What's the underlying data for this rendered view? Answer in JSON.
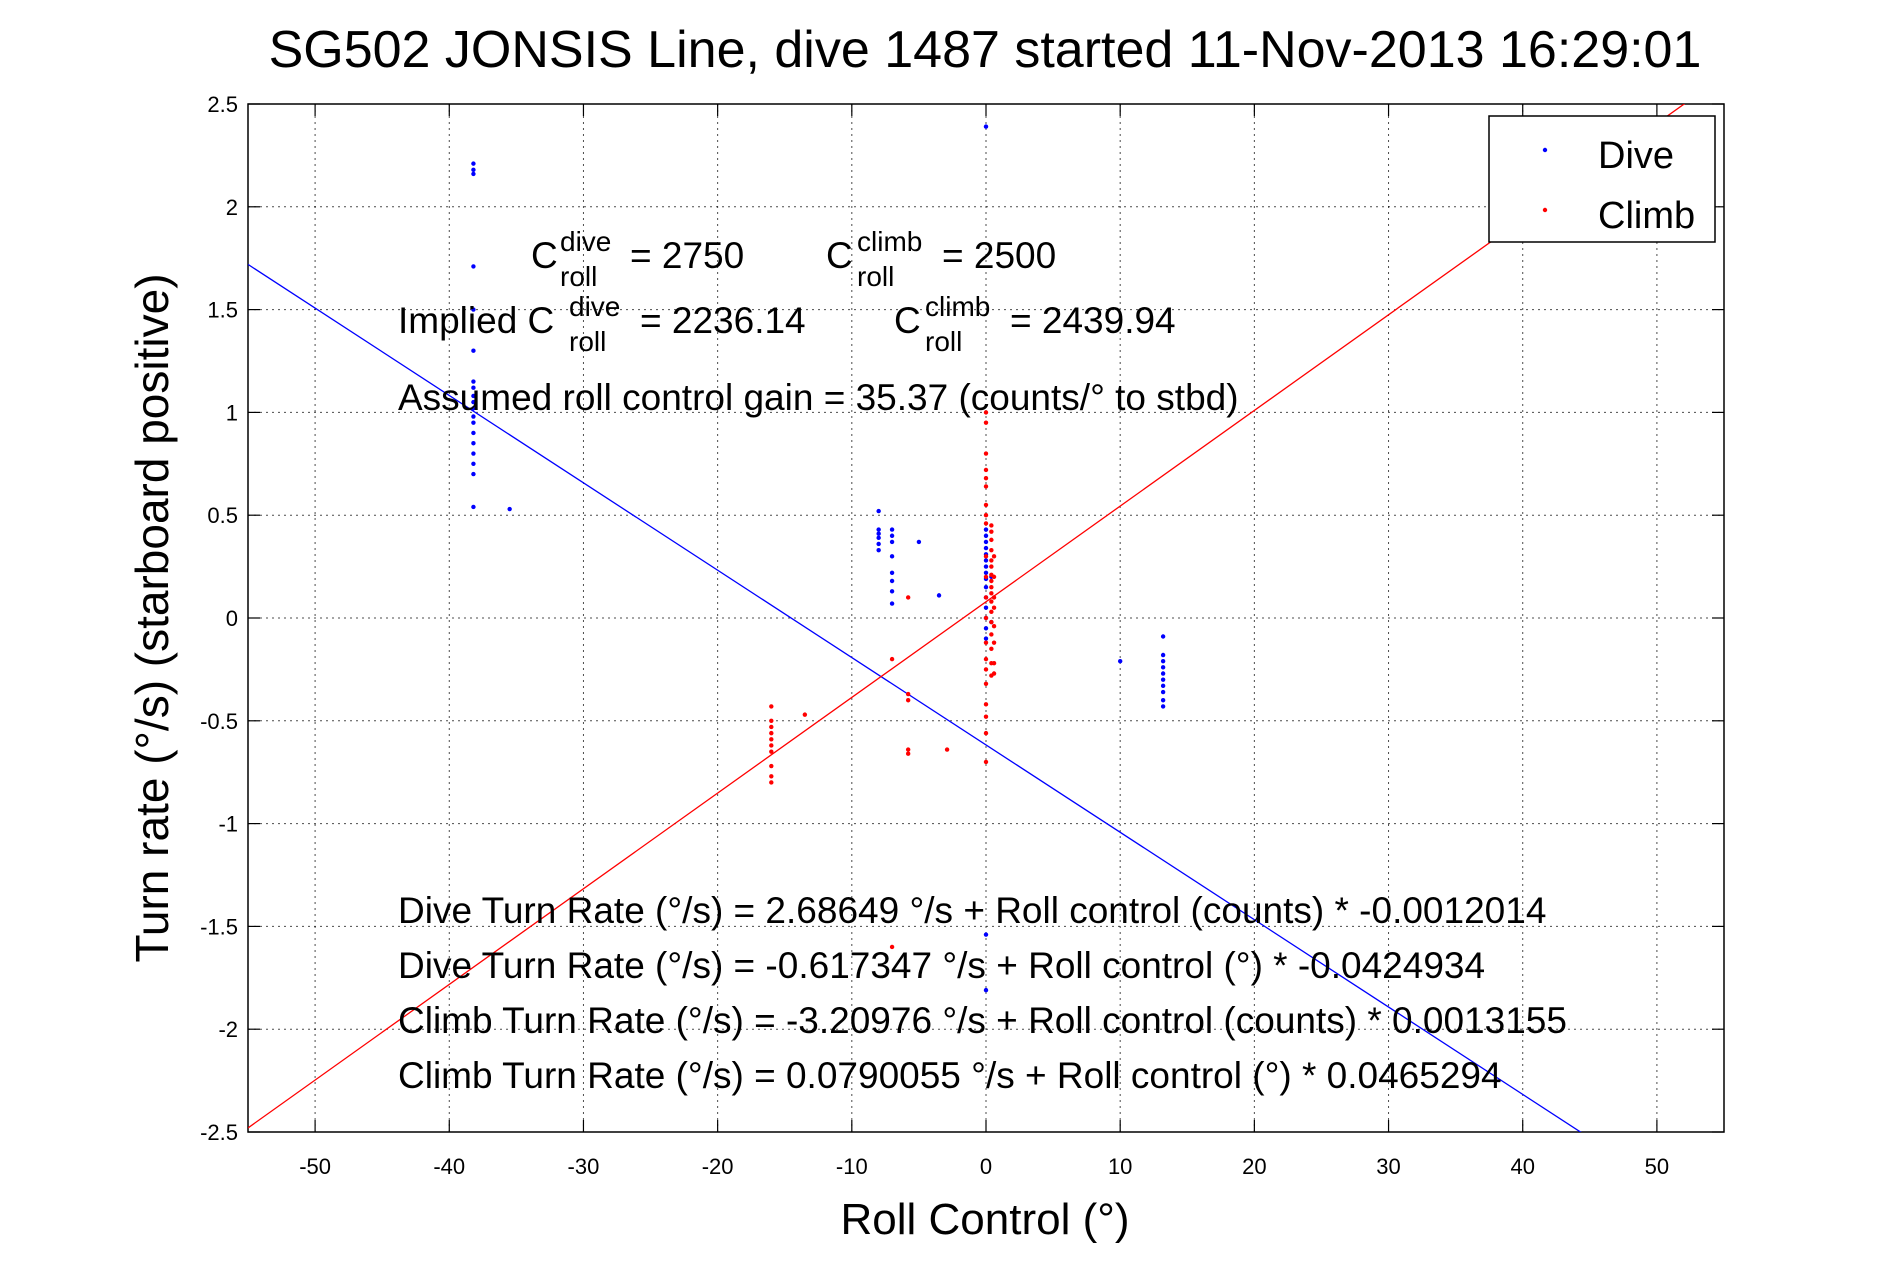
{
  "chart_data": {
    "type": "scatter",
    "title": "SG502 JONSIS Line, dive 1487 started 11-Nov-2013 16:29:01",
    "xlabel": "Roll Control (°)",
    "ylabel": "Turn rate (°/s) (starboard positive)",
    "xlim": [
      -55,
      55
    ],
    "ylim": [
      -2.5,
      2.5
    ],
    "xticks": [
      -50,
      -40,
      -30,
      -20,
      -10,
      0,
      10,
      20,
      30,
      40,
      50
    ],
    "yticks": [
      -2.5,
      -2,
      -1.5,
      -1,
      -0.5,
      0,
      0.5,
      1,
      1.5,
      2,
      2.5
    ],
    "xtick_labels": [
      "-50",
      "-40",
      "-30",
      "-20",
      "-10",
      "0",
      "10",
      "20",
      "30",
      "40",
      "50"
    ],
    "ytick_labels": [
      "-2.5",
      "-2",
      "-1.5",
      "-1",
      "-0.5",
      "0",
      "0.5",
      "1",
      "1.5",
      "2",
      "2.5"
    ],
    "grid": true,
    "legend_position": "top-right",
    "series": [
      {
        "name": "Dive",
        "color": "#0000ff",
        "points": [
          [
            -38.2,
            2.21
          ],
          [
            -38.2,
            2.18
          ],
          [
            -38.2,
            2.16
          ],
          [
            -38.2,
            1.71
          ],
          [
            -38.2,
            1.5
          ],
          [
            -38.2,
            1.3
          ],
          [
            -38.2,
            1.15
          ],
          [
            -38.2,
            1.12
          ],
          [
            -38.2,
            1.08
          ],
          [
            -38.2,
            1.05
          ],
          [
            -38.2,
            1.02
          ],
          [
            -38.2,
            0.98
          ],
          [
            -38.2,
            0.95
          ],
          [
            -38.2,
            0.9
          ],
          [
            -38.2,
            0.85
          ],
          [
            -38.2,
            0.8
          ],
          [
            -38.2,
            0.75
          ],
          [
            -38.2,
            0.7
          ],
          [
            -38.2,
            0.54
          ],
          [
            -35.5,
            0.53
          ],
          [
            -8.0,
            0.52
          ],
          [
            -8.0,
            0.43
          ],
          [
            -8.0,
            0.41
          ],
          [
            -8.0,
            0.39
          ],
          [
            -8.0,
            0.36
          ],
          [
            -8.0,
            0.33
          ],
          [
            -7.0,
            0.43
          ],
          [
            -7.0,
            0.4
          ],
          [
            -7.0,
            0.37
          ],
          [
            -7.0,
            0.3
          ],
          [
            -7.0,
            0.22
          ],
          [
            -7.0,
            0.18
          ],
          [
            -7.0,
            0.13
          ],
          [
            -7.0,
            0.07
          ],
          [
            -5.0,
            0.37
          ],
          [
            -3.5,
            0.11
          ],
          [
            0.0,
            2.39
          ],
          [
            0.0,
            0.43
          ],
          [
            0.0,
            0.4
          ],
          [
            0.0,
            0.37
          ],
          [
            0.0,
            0.34
          ],
          [
            0.0,
            0.31
          ],
          [
            0.0,
            0.28
          ],
          [
            0.0,
            0.25
          ],
          [
            0.0,
            0.22
          ],
          [
            0.0,
            0.19
          ],
          [
            0.0,
            0.15
          ],
          [
            0.0,
            0.1
          ],
          [
            0.0,
            0.05
          ],
          [
            0.0,
            0.0
          ],
          [
            0.0,
            -0.05
          ],
          [
            0.0,
            -0.1
          ],
          [
            0.0,
            -1.54
          ],
          [
            0.0,
            -1.81
          ],
          [
            0.4,
            0.2
          ],
          [
            0.4,
            -0.02
          ],
          [
            10.0,
            -0.21
          ],
          [
            13.2,
            -0.09
          ],
          [
            13.2,
            -0.18
          ],
          [
            13.2,
            -0.21
          ],
          [
            13.2,
            -0.24
          ],
          [
            13.2,
            -0.27
          ],
          [
            13.2,
            -0.3
          ],
          [
            13.2,
            -0.33
          ],
          [
            13.2,
            -0.36
          ],
          [
            13.2,
            -0.4
          ],
          [
            13.2,
            -0.43
          ]
        ]
      },
      {
        "name": "Climb",
        "color": "#ff0000",
        "points": [
          [
            -16.0,
            -0.43
          ],
          [
            -16.0,
            -0.5
          ],
          [
            -16.0,
            -0.53
          ],
          [
            -16.0,
            -0.56
          ],
          [
            -16.0,
            -0.59
          ],
          [
            -16.0,
            -0.62
          ],
          [
            -16.0,
            -0.65
          ],
          [
            -16.0,
            -0.72
          ],
          [
            -16.0,
            -0.77
          ],
          [
            -16.0,
            -0.8
          ],
          [
            -13.5,
            -0.47
          ],
          [
            -7.0,
            -0.2
          ],
          [
            -7.0,
            -1.6
          ],
          [
            -5.8,
            0.1
          ],
          [
            -5.8,
            -0.37
          ],
          [
            -5.8,
            -0.4
          ],
          [
            -5.8,
            -0.64
          ],
          [
            -5.8,
            -0.66
          ],
          [
            -2.9,
            -0.64
          ],
          [
            0.0,
            1.0
          ],
          [
            0.0,
            0.95
          ],
          [
            0.0,
            0.8
          ],
          [
            0.0,
            0.72
          ],
          [
            0.0,
            0.68
          ],
          [
            0.0,
            0.64
          ],
          [
            0.0,
            0.55
          ],
          [
            0.0,
            0.5
          ],
          [
            0.0,
            0.46
          ],
          [
            0.0,
            0.3
          ],
          [
            0.0,
            0.2
          ],
          [
            0.0,
            0.1
          ],
          [
            0.0,
            0.0
          ],
          [
            0.0,
            -0.12
          ],
          [
            0.0,
            -0.2
          ],
          [
            0.0,
            -0.25
          ],
          [
            0.0,
            -0.32
          ],
          [
            0.0,
            -0.42
          ],
          [
            0.0,
            -0.48
          ],
          [
            0.0,
            -0.56
          ],
          [
            0.0,
            -0.7
          ],
          [
            0.4,
            0.45
          ],
          [
            0.4,
            0.42
          ],
          [
            0.4,
            0.38
          ],
          [
            0.4,
            0.33
          ],
          [
            0.4,
            0.28
          ],
          [
            0.4,
            0.25
          ],
          [
            0.4,
            0.21
          ],
          [
            0.4,
            0.18
          ],
          [
            0.4,
            0.15
          ],
          [
            0.4,
            0.12
          ],
          [
            0.4,
            0.08
          ],
          [
            0.4,
            0.03
          ],
          [
            0.4,
            -0.02
          ],
          [
            0.4,
            -0.08
          ],
          [
            0.4,
            -0.15
          ],
          [
            0.4,
            -0.22
          ],
          [
            0.4,
            -0.28
          ],
          [
            0.6,
            0.3
          ],
          [
            0.6,
            0.2
          ],
          [
            0.6,
            0.1
          ],
          [
            0.6,
            0.05
          ],
          [
            0.6,
            -0.04
          ],
          [
            0.6,
            -0.12
          ],
          [
            0.6,
            -0.22
          ],
          [
            0.6,
            -0.27
          ]
        ]
      }
    ],
    "fit_lines": [
      {
        "name": "Dive fit",
        "color": "#0000ff",
        "slope": -0.0424934,
        "intercept": -0.617347
      },
      {
        "name": "Climb fit",
        "color": "#ff0000",
        "slope": 0.0465294,
        "intercept": 0.0790055
      }
    ],
    "legend": [
      {
        "label": "Dive",
        "color": "#0000ff"
      },
      {
        "label": "Climb",
        "color": "#ff0000"
      }
    ],
    "annotations": {
      "c_sym": "C",
      "sub_roll": "roll",
      "sup_dive": "dive",
      "sup_climb": "climb",
      "c_dive_value": "= 2750",
      "c_climb_value": "= 2500",
      "implied_prefix": "Implied C",
      "implied_dive_value": "= 2236.14",
      "implied_climb_value": "= 2439.94",
      "gain_line": "Assumed roll control gain = 35.37 (counts/° to stbd)",
      "eq_lines": [
        "Dive Turn Rate (°/s) = 2.68649 °/s + Roll control (counts) * -0.0012014",
        "Dive Turn Rate (°/s) = -0.617347 °/s + Roll control (°) * -0.0424934",
        "Climb Turn Rate (°/s) = -3.20976 °/s + Roll control (counts) * 0.0013155",
        "Climb Turn Rate (°/s) = 0.0790055 °/s + Roll control (°) * 0.0465294"
      ]
    }
  }
}
